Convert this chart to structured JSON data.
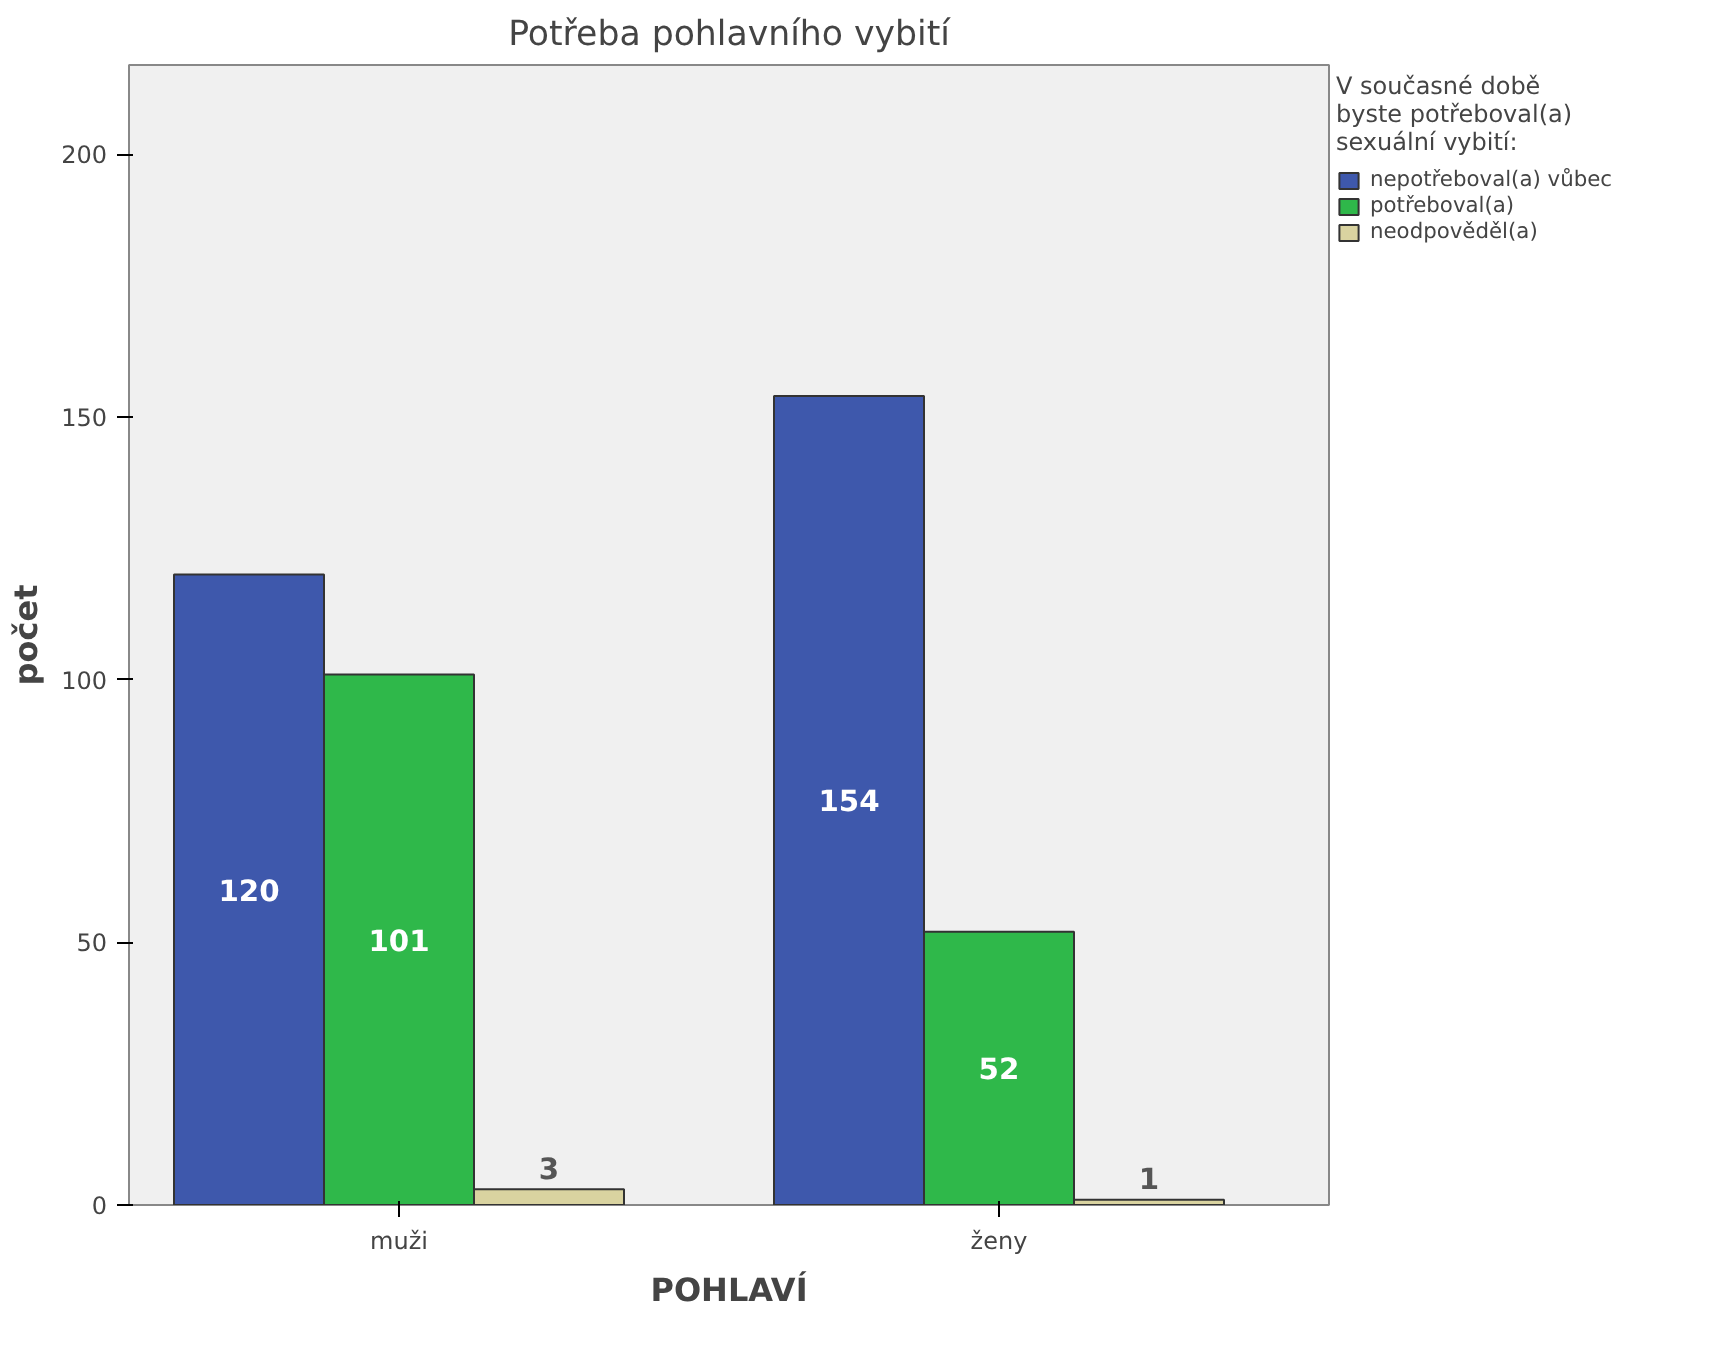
{
  "chart_data": {
    "type": "bar",
    "title": "Potřeba pohlavního vybití",
    "xlabel": "POHLAVÍ",
    "ylabel": "počet",
    "legend_title": "V současné době byste potřeboval(a) sexuální vybití:",
    "categories": [
      "muži",
      "ženy"
    ],
    "series": [
      {
        "name": "nepotřeboval(a) vůbec",
        "color": "#3e58ac",
        "values": [
          120,
          154
        ]
      },
      {
        "name": "potřeboval(a)",
        "color": "#2fb84a",
        "values": [
          101,
          52
        ]
      },
      {
        "name": "neodpověděl(a)",
        "color": "#d9d3a0",
        "values": [
          3,
          1
        ]
      }
    ],
    "ylim": [
      0,
      217
    ],
    "yticks": [
      0,
      50,
      100,
      150,
      200
    ],
    "data_labels": true,
    "legend": "top right",
    "grid": false
  }
}
